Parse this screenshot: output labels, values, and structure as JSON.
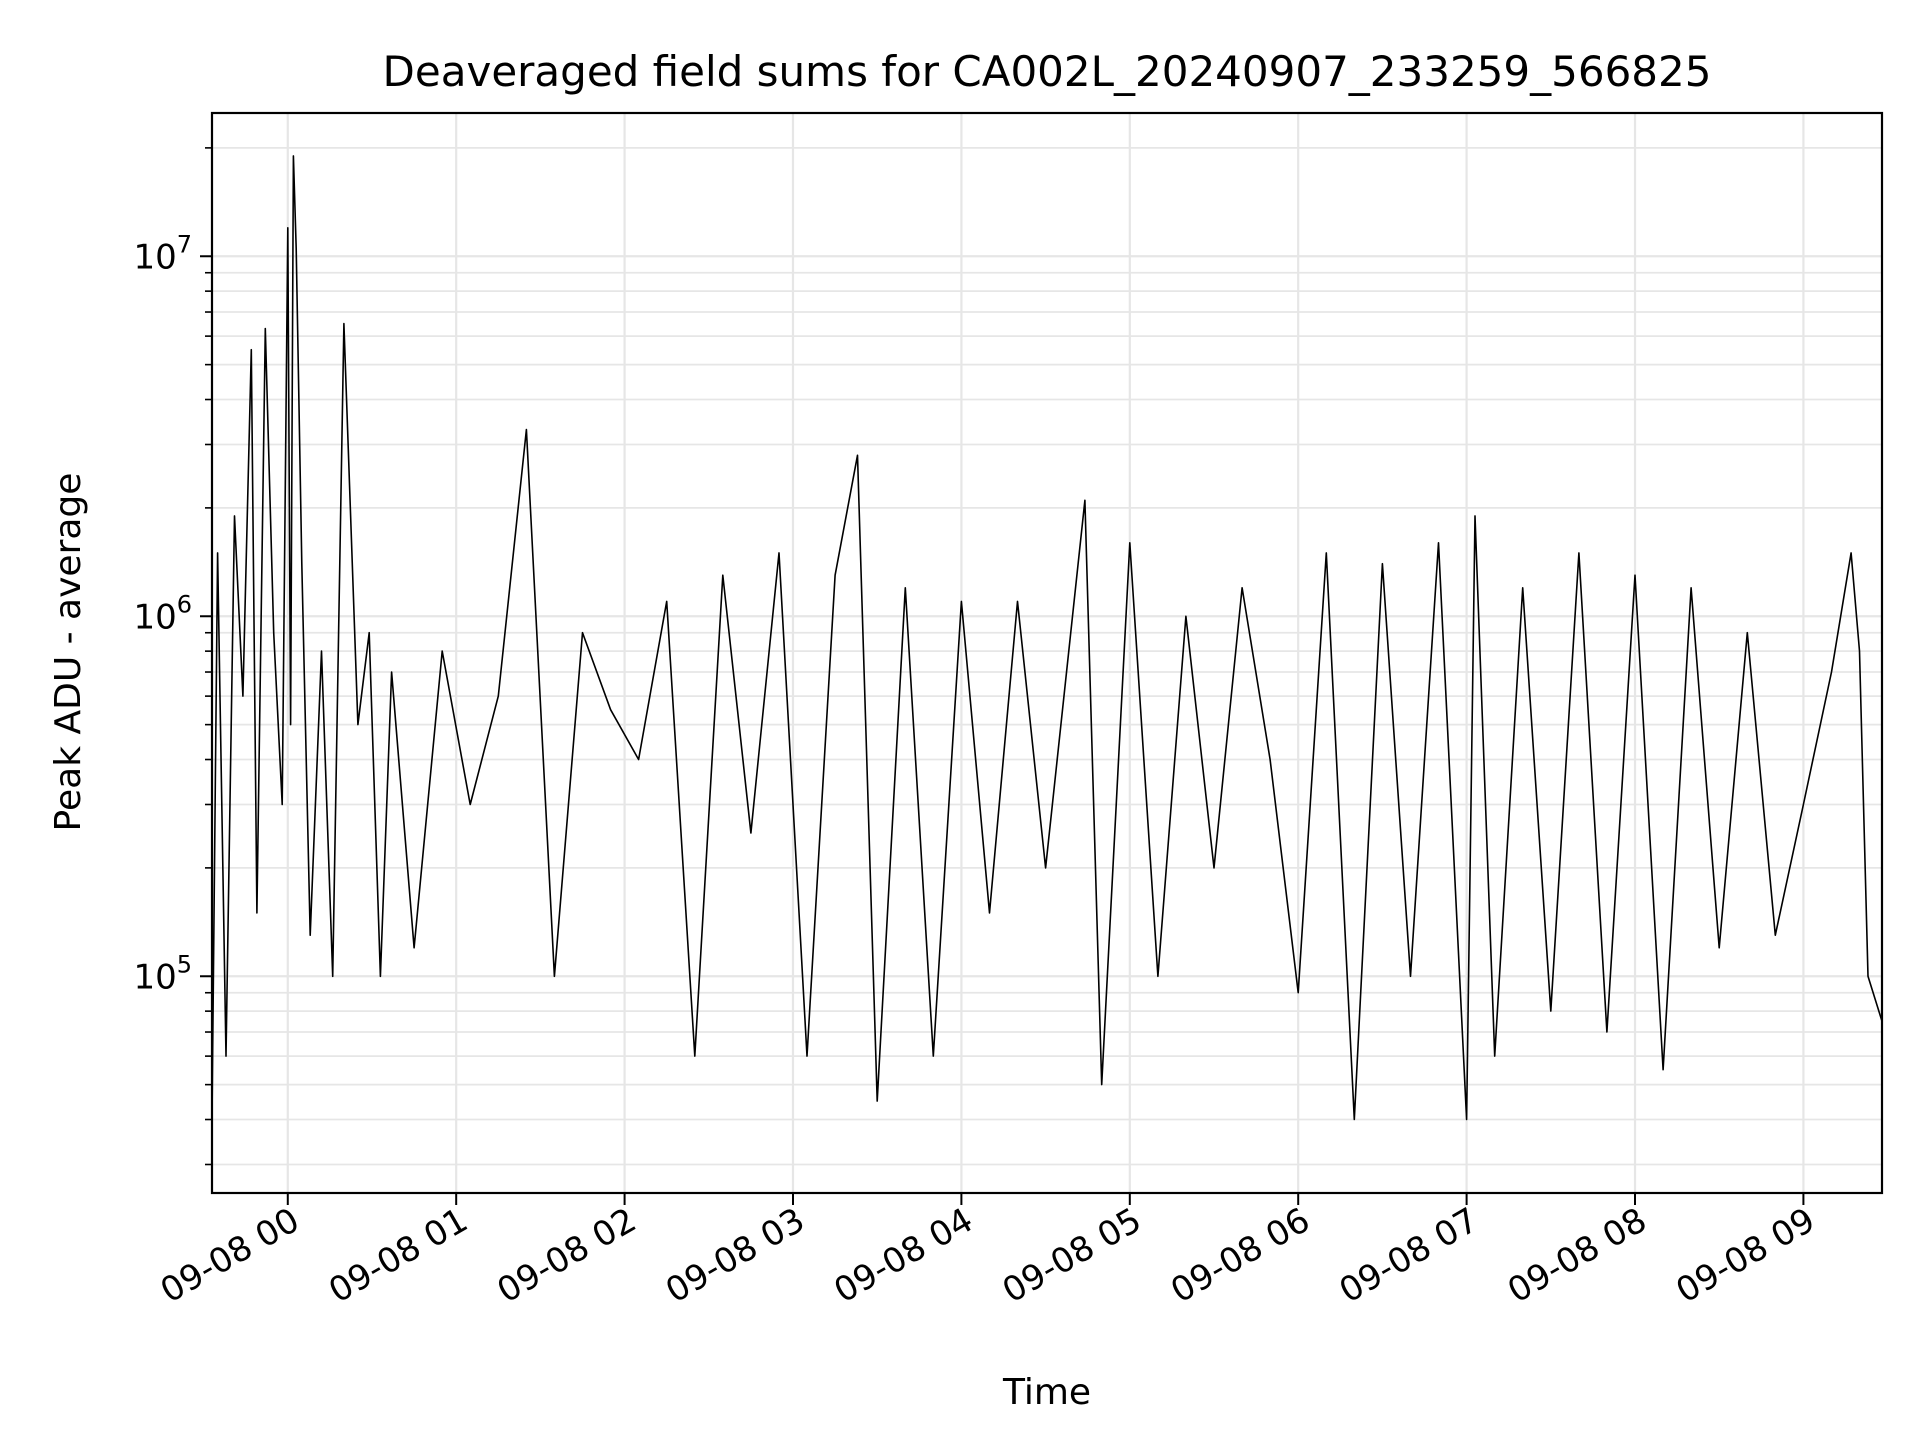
{
  "chart_data": {
    "type": "line",
    "title": "Deaveraged field sums for CA002L_20240907_233259_566825",
    "xlabel": "Time",
    "ylabel": "Peak ADU - average",
    "yscale": "log",
    "xlim": [
      "09-07 23:33",
      "09-08 09:28"
    ],
    "ylim": [
      25000,
      25000000
    ],
    "grid": true,
    "series_color": "#000000",
    "grid_color": "#e6e6e6",
    "x_ticks": [
      "09-08 00",
      "09-08 01",
      "09-08 02",
      "09-08 03",
      "09-08 04",
      "09-08 05",
      "09-08 06",
      "09-08 07",
      "09-08 08",
      "09-08 09"
    ],
    "y_ticks": [
      {
        "value": 100000,
        "base": "10",
        "exp": "5"
      },
      {
        "value": 1000000,
        "base": "10",
        "exp": "6"
      },
      {
        "value": 10000000,
        "base": "10",
        "exp": "7"
      }
    ],
    "series": [
      {
        "x": [
          "09-07 23:33",
          "09-07 23:35",
          "09-07 23:38",
          "09-07 23:41",
          "09-07 23:44",
          "09-07 23:47",
          "09-07 23:49",
          "09-07 23:52",
          "09-07 23:55",
          "09-07 23:58",
          "09-08 00:00",
          "09-08 00:01",
          "09-08 00:02",
          "09-08 00:03",
          "09-08 00:05",
          "09-08 00:08",
          "09-08 00:12",
          "09-08 00:16",
          "09-08 00:20",
          "09-08 00:25",
          "09-08 00:29",
          "09-08 00:33",
          "09-08 00:37",
          "09-08 00:45",
          "09-08 00:55",
          "09-08 01:05",
          "09-08 01:15",
          "09-08 01:25",
          "09-08 01:35",
          "09-08 01:45",
          "09-08 01:55",
          "09-08 02:05",
          "09-08 02:15",
          "09-08 02:25",
          "09-08 02:35",
          "09-08 02:45",
          "09-08 02:55",
          "09-08 03:05",
          "09-08 03:15",
          "09-08 03:23",
          "09-08 03:30",
          "09-08 03:40",
          "09-08 03:50",
          "09-08 04:00",
          "09-08 04:10",
          "09-08 04:20",
          "09-08 04:30",
          "09-08 04:44",
          "09-08 04:50",
          "09-08 05:00",
          "09-08 05:10",
          "09-08 05:20",
          "09-08 05:30",
          "09-08 05:40",
          "09-08 05:50",
          "09-08 06:00",
          "09-08 06:10",
          "09-08 06:20",
          "09-08 06:30",
          "09-08 06:40",
          "09-08 06:50",
          "09-08 07:00",
          "09-08 07:03",
          "09-08 07:10",
          "09-08 07:20",
          "09-08 07:30",
          "09-08 07:40",
          "09-08 07:50",
          "09-08 08:00",
          "09-08 08:10",
          "09-08 08:20",
          "09-08 08:30",
          "09-08 08:40",
          "09-08 08:50",
          "09-08 09:00",
          "09-08 09:10",
          "09-08 09:17",
          "09-08 09:20",
          "09-08 09:23",
          "09-08 09:28"
        ],
        "y": [
          40000,
          1500000,
          60000,
          1900000,
          600000,
          5500000,
          150000,
          6300000,
          900000,
          300000,
          12000000,
          500000,
          19000000,
          10500000,
          1400000,
          130000,
          800000,
          100000,
          6500000,
          500000,
          900000,
          100000,
          700000,
          120000,
          800000,
          300000,
          600000,
          3300000,
          100000,
          900000,
          550000,
          400000,
          1100000,
          60000,
          1300000,
          250000,
          1500000,
          60000,
          1300000,
          2800000,
          45000,
          1200000,
          60000,
          1100000,
          150000,
          1100000,
          200000,
          2100000,
          50000,
          1600000,
          100000,
          1000000,
          200000,
          1200000,
          400000,
          90000,
          1500000,
          40000,
          1400000,
          100000,
          1600000,
          40000,
          1900000,
          60000,
          1200000,
          80000,
          1500000,
          70000,
          1300000,
          55000,
          1200000,
          120000,
          900000,
          130000,
          300000,
          700000,
          1500000,
          800000,
          100000,
          75000
        ]
      }
    ]
  }
}
